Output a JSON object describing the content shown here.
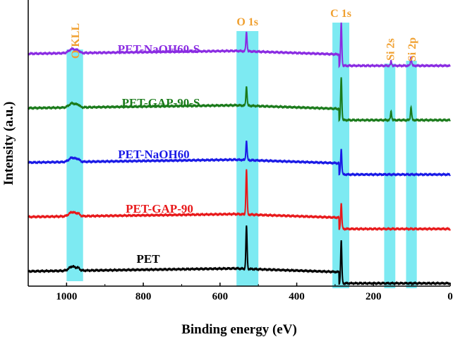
{
  "chart_data": {
    "type": "line",
    "title": "",
    "xlabel": "Binding energy (eV)",
    "ylabel": "Intensity (a.u.)",
    "xlim": [
      1100,
      0
    ],
    "x_reversed": true,
    "xticks": [
      1000,
      800,
      600,
      400,
      200,
      0
    ],
    "yticks_shown": false,
    "grid": false,
    "highlight_color": "#66e6f0",
    "peak_label_color": "#f0a030",
    "regions": [
      {
        "name": "o-kll",
        "label": "O KLL",
        "from": 1000,
        "to": 957
      },
      {
        "name": "o1s",
        "label": "O 1s",
        "from": 557,
        "to": 500
      },
      {
        "name": "c1s",
        "label": "C 1s",
        "from": 307,
        "to": 263
      },
      {
        "name": "si2s",
        "label": "Si 2s",
        "from": 172,
        "to": 143
      },
      {
        "name": "si2p",
        "label": "Si 2p",
        "from": 115,
        "to": 87
      }
    ],
    "series": [
      {
        "name": "PET",
        "color": "#000000",
        "offset": 0,
        "peaks": [
          {
            "x": 531,
            "h": 1.0
          },
          {
            "x": 284,
            "h": 1.0
          }
        ]
      },
      {
        "name": "PET-GAP-90",
        "color": "#e8181a",
        "offset": 1,
        "peaks": [
          {
            "x": 531,
            "h": 1.05
          },
          {
            "x": 284,
            "h": 0.6
          }
        ]
      },
      {
        "name": "PET-NaOH60",
        "color": "#1a1ae6",
        "offset": 2,
        "peaks": [
          {
            "x": 531,
            "h": 0.45
          },
          {
            "x": 284,
            "h": 0.6
          }
        ]
      },
      {
        "name": "PET-GAP-90-S",
        "color": "#1a7a1a",
        "offset": 3,
        "peaks": [
          {
            "x": 531,
            "h": 0.45
          },
          {
            "x": 284,
            "h": 1.0
          },
          {
            "x": 154,
            "h": 0.2
          },
          {
            "x": 102,
            "h": 0.3
          }
        ]
      },
      {
        "name": "PET-NaOH60-S",
        "color": "#8a2be2",
        "offset": 4,
        "peaks": [
          {
            "x": 531,
            "h": 0.45
          },
          {
            "x": 284,
            "h": 1.0
          },
          {
            "x": 154,
            "h": 0.1
          },
          {
            "x": 102,
            "h": 0.2
          }
        ]
      }
    ]
  }
}
